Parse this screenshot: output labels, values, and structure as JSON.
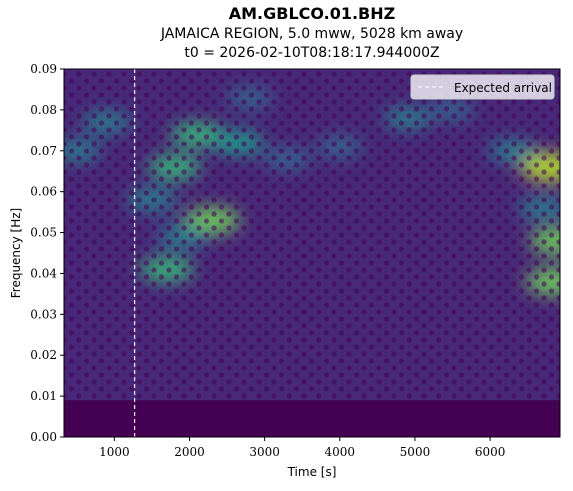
{
  "title": "AM.GBLCO.01.BHZ",
  "subtitle": "JAMAICA REGION, 5.0 mww, 5028 km away",
  "t0_line": "t0 = 2026-02-10T08:18:17.944000Z",
  "colors": {
    "colormap": [
      "#440154",
      "#482878",
      "#3e4989",
      "#31688e",
      "#26828e",
      "#1f9e89",
      "#35b779",
      "#6ece58",
      "#b5de2b"
    ],
    "marker": "#ffffff"
  },
  "chart_data": {
    "type": "heatmap",
    "xlabel": "Time [s]",
    "ylabel": "Frequency [Hz]",
    "xlim": [
      330,
      6930
    ],
    "ylim": [
      0.0,
      0.09
    ],
    "x_ticks": [
      1000,
      2000,
      3000,
      4000,
      5000,
      6000
    ],
    "x_tick_labels": [
      "1000",
      "2000",
      "3000",
      "4000",
      "5000",
      "6000"
    ],
    "y_ticks": [
      0.0,
      0.01,
      0.02,
      0.03,
      0.04,
      0.05,
      0.06,
      0.07,
      0.08,
      0.09
    ],
    "y_tick_labels": [
      "0.00",
      "0.01",
      "0.02",
      "0.03",
      "0.04",
      "0.05",
      "0.06",
      "0.07",
      "0.08",
      "0.09"
    ],
    "colormap": "viridis",
    "expected_arrival_time": 1270,
    "legend": {
      "entries": [
        "Expected arrival"
      ],
      "placement": "top-right"
    },
    "hotspots": [
      {
        "time": 1700,
        "freq": 0.041,
        "level": 0.75
      },
      {
        "time": 2300,
        "freq": 0.053,
        "level": 0.85
      },
      {
        "time": 1800,
        "freq": 0.066,
        "level": 0.7
      },
      {
        "time": 2100,
        "freq": 0.074,
        "level": 0.7
      },
      {
        "time": 2650,
        "freq": 0.072,
        "level": 0.6
      },
      {
        "time": 1500,
        "freq": 0.058,
        "level": 0.55
      },
      {
        "time": 1900,
        "freq": 0.049,
        "level": 0.5
      },
      {
        "time": 900,
        "freq": 0.077,
        "level": 0.5
      },
      {
        "time": 500,
        "freq": 0.07,
        "level": 0.45
      },
      {
        "time": 3300,
        "freq": 0.068,
        "level": 0.4
      },
      {
        "time": 4000,
        "freq": 0.071,
        "level": 0.4
      },
      {
        "time": 4900,
        "freq": 0.078,
        "level": 0.45
      },
      {
        "time": 6300,
        "freq": 0.07,
        "level": 0.5
      },
      {
        "time": 6800,
        "freq": 0.066,
        "level": 0.95
      },
      {
        "time": 6900,
        "freq": 0.048,
        "level": 0.85
      },
      {
        "time": 6850,
        "freq": 0.038,
        "level": 0.85
      },
      {
        "time": 6700,
        "freq": 0.056,
        "level": 0.5
      },
      {
        "time": 2800,
        "freq": 0.083,
        "level": 0.4
      },
      {
        "time": 5500,
        "freq": 0.08,
        "level": 0.35
      }
    ]
  }
}
